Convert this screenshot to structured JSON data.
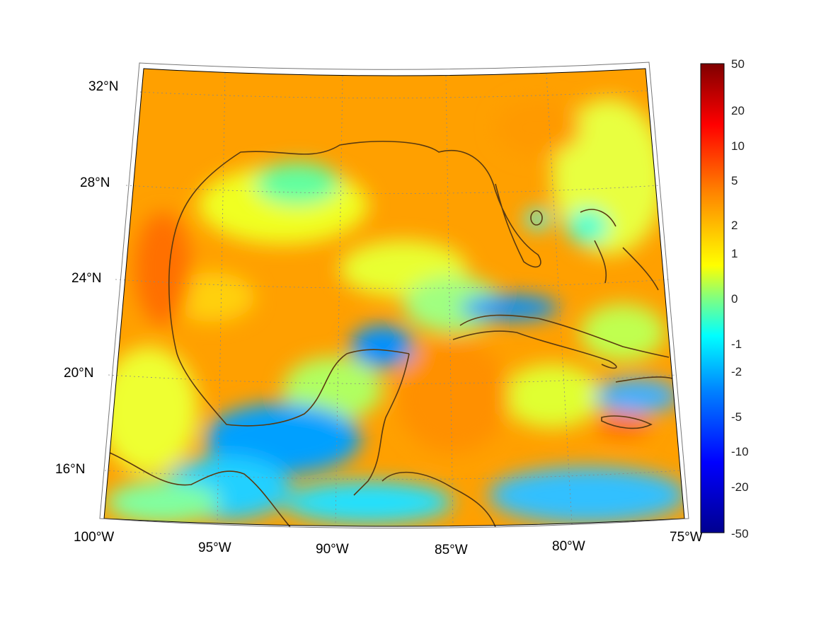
{
  "map": {
    "region": "Gulf of Mexico and Caribbean",
    "longitude_ticks": [
      "100°W",
      "95°W",
      "90°W",
      "85°W",
      "80°W",
      "75°W"
    ],
    "latitude_ticks": [
      "32°N",
      "28°N",
      "24°N",
      "20°N",
      "16°N"
    ],
    "coastline_color": "#5a3a10",
    "gridline_color": "#888888"
  },
  "colorbar": {
    "tick_labels": [
      "50",
      "20",
      "10",
      "5",
      "2",
      "1",
      "0",
      "-1",
      "-2",
      "-5",
      "-10",
      "-20",
      "-50"
    ],
    "colormap": "jet",
    "colors": [
      "#7f0000",
      "#ff0000",
      "#ff8000",
      "#ffff00",
      "#80ff80",
      "#00ffff",
      "#0080ff",
      "#0000ff",
      "#00008f"
    ]
  }
}
